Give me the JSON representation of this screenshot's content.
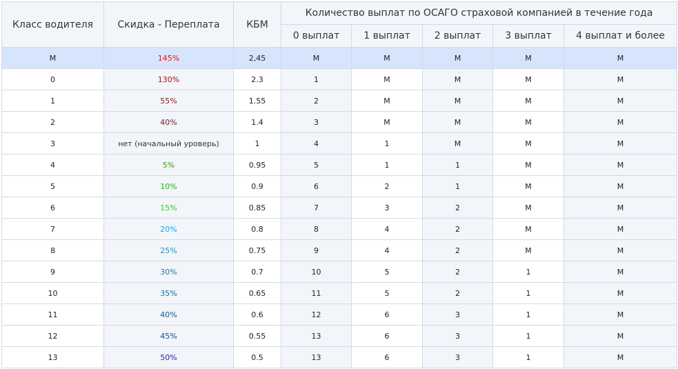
{
  "table": {
    "headers": {
      "class": "Класс водителя",
      "discount": "Скидка - Переплата",
      "kbm": "КБМ",
      "payouts_group": "Количество выплат по ОСАГО страховой компанией в течение года",
      "payouts": [
        "0 выплат",
        "1 выплат",
        "2 выплат",
        "3 выплат",
        "4 выплат и более"
      ]
    },
    "rows": [
      {
        "class": "M",
        "discount": "145%",
        "discount_color": "#e8121f",
        "kbm": "2,45",
        "p": [
          "M",
          "M",
          "M",
          "M",
          "M"
        ]
      },
      {
        "class": "0",
        "discount": "130%",
        "discount_color": "#b0101a",
        "kbm": "2.3",
        "p": [
          "1",
          "M",
          "M",
          "M",
          "M"
        ]
      },
      {
        "class": "1",
        "discount": "55%",
        "discount_color": "#8b1a1a",
        "kbm": "1.55",
        "p": [
          "2",
          "M",
          "M",
          "M",
          "M"
        ]
      },
      {
        "class": "2",
        "discount": "40%",
        "discount_color": "#6b1f1f",
        "kbm": "1.4",
        "p": [
          "3",
          "M",
          "M",
          "M",
          "M"
        ]
      },
      {
        "class": "3",
        "discount": "нет (начальный уроверь)",
        "discount_color": "#333333",
        "kbm": "1",
        "p": [
          "4",
          "1",
          "M",
          "M",
          "M"
        ]
      },
      {
        "class": "4",
        "discount": "5%",
        "discount_color": "#3a9a1a",
        "kbm": "0.95",
        "p": [
          "5",
          "1",
          "1",
          "M",
          "M"
        ]
      },
      {
        "class": "5",
        "discount": "10%",
        "discount_color": "#22b522",
        "kbm": "0.9",
        "p": [
          "6",
          "2",
          "1",
          "M",
          "M"
        ]
      },
      {
        "class": "6",
        "discount": "15%",
        "discount_color": "#30d030",
        "kbm": "0.85",
        "p": [
          "7",
          "3",
          "2",
          "M",
          "M"
        ]
      },
      {
        "class": "7",
        "discount": "20%",
        "discount_color": "#1ea8d8",
        "kbm": "0.8",
        "p": [
          "8",
          "4",
          "2",
          "M",
          "M"
        ]
      },
      {
        "class": "8",
        "discount": "25%",
        "discount_color": "#1a96b8",
        "kbm": "0.75",
        "p": [
          "9",
          "4",
          "2",
          "M",
          "M"
        ]
      },
      {
        "class": "9",
        "discount": "30%",
        "discount_color": "#1a80a0",
        "kbm": "0.7",
        "p": [
          "10",
          "5",
          "2",
          "1",
          "M"
        ]
      },
      {
        "class": "10",
        "discount": "35%",
        "discount_color": "#1a6a98",
        "kbm": "0.65",
        "p": [
          "11",
          "5",
          "2",
          "1",
          "M"
        ]
      },
      {
        "class": "11",
        "discount": "40%",
        "discount_color": "#1a5a8a",
        "kbm": "0.6",
        "p": [
          "12",
          "6",
          "3",
          "1",
          "M"
        ]
      },
      {
        "class": "12",
        "discount": "45%",
        "discount_color": "#1a4a88",
        "kbm": "0.55",
        "p": [
          "13",
          "6",
          "3",
          "1",
          "M"
        ]
      },
      {
        "class": "13",
        "discount": "50%",
        "discount_color": "#2a20a8",
        "kbm": "0.5",
        "p": [
          "13",
          "6",
          "3",
          "1",
          "M"
        ]
      }
    ],
    "colors": {
      "header_bg": "#f2f5fa",
      "highlight_row_bg": "#d6e4fc",
      "alt_col_bg": "#f2f5fa",
      "border": "#d4d9e3"
    }
  }
}
